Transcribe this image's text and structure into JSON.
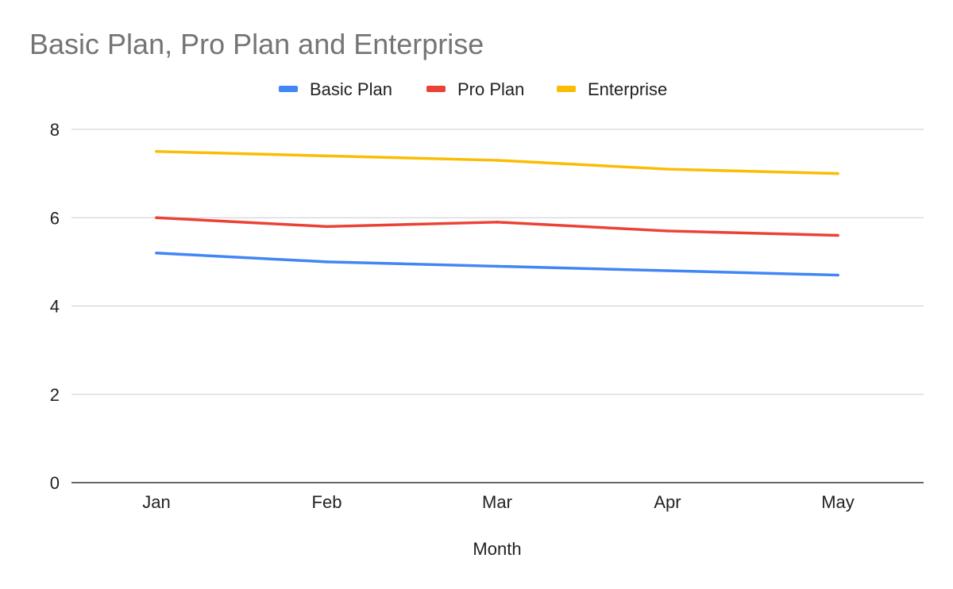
{
  "chart_data": {
    "type": "line",
    "title": "Basic Plan, Pro Plan and Enterprise",
    "xlabel": "Month",
    "ylabel": "",
    "categories": [
      "Jan",
      "Feb",
      "Mar",
      "Apr",
      "May"
    ],
    "ylim": [
      0,
      8
    ],
    "yticks": [
      0,
      2,
      4,
      6,
      8
    ],
    "grid": true,
    "legend_position": "top",
    "series": [
      {
        "name": "Basic Plan",
        "color": "#4285f4",
        "values": [
          5.2,
          5.0,
          4.9,
          4.8,
          4.7
        ]
      },
      {
        "name": "Pro Plan",
        "color": "#ea4335",
        "values": [
          6.0,
          5.8,
          5.9,
          5.7,
          5.6
        ]
      },
      {
        "name": "Enterprise",
        "color": "#fbbc04",
        "values": [
          7.5,
          7.4,
          7.3,
          7.1,
          7.0
        ]
      }
    ]
  }
}
